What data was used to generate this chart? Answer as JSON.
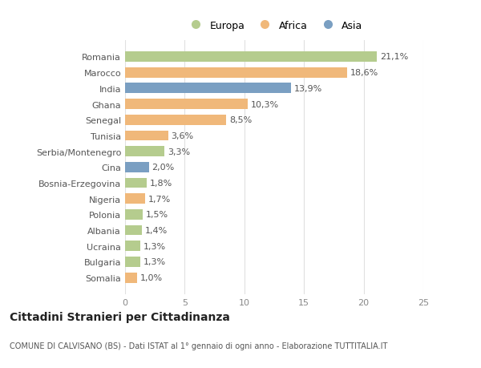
{
  "countries": [
    "Romania",
    "Marocco",
    "India",
    "Ghana",
    "Senegal",
    "Tunisia",
    "Serbia/Montenegro",
    "Cina",
    "Bosnia-Erzegovina",
    "Nigeria",
    "Polonia",
    "Albania",
    "Ucraina",
    "Bulgaria",
    "Somalia"
  ],
  "values": [
    21.1,
    18.6,
    13.9,
    10.3,
    8.5,
    3.6,
    3.3,
    2.0,
    1.8,
    1.7,
    1.5,
    1.4,
    1.3,
    1.3,
    1.0
  ],
  "labels": [
    "21,1%",
    "18,6%",
    "13,9%",
    "10,3%",
    "8,5%",
    "3,6%",
    "3,3%",
    "2,0%",
    "1,8%",
    "1,7%",
    "1,5%",
    "1,4%",
    "1,3%",
    "1,3%",
    "1,0%"
  ],
  "continents": [
    "Europa",
    "Africa",
    "Asia",
    "Africa",
    "Africa",
    "Africa",
    "Europa",
    "Asia",
    "Europa",
    "Africa",
    "Europa",
    "Europa",
    "Europa",
    "Europa",
    "Africa"
  ],
  "colors": {
    "Europa": "#b5cc8e",
    "Africa": "#f0b87a",
    "Asia": "#7a9fc2"
  },
  "xlim": [
    0,
    25
  ],
  "xticks": [
    0,
    5,
    10,
    15,
    20,
    25
  ],
  "title": "Cittadini Stranieri per Cittadinanza",
  "subtitle": "COMUNE DI CALVISANO (BS) - Dati ISTAT al 1° gennaio di ogni anno - Elaborazione TUTTITALIA.IT",
  "bg_color": "#ffffff",
  "plot_bg_color": "#ffffff",
  "grid_color": "#e0e0e0",
  "bar_height": 0.65,
  "label_fontsize": 8,
  "tick_fontsize": 8,
  "title_fontsize": 10,
  "subtitle_fontsize": 7
}
